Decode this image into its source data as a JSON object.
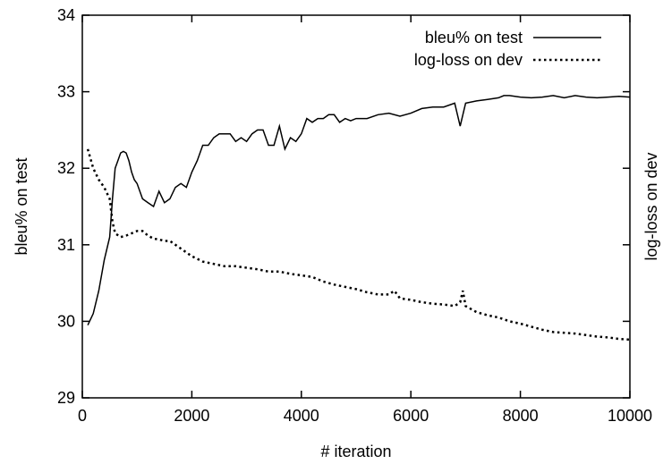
{
  "chart_data": {
    "type": "line",
    "xlabel": "# iteration",
    "ylabel": "bleu% on test",
    "y2label": "log-loss on dev",
    "xlim": [
      0,
      10000
    ],
    "ylim": [
      29,
      34
    ],
    "x_ticks": [
      "0",
      "2000",
      "4000",
      "6000",
      "8000",
      "10000"
    ],
    "y_ticks": [
      "29",
      "30",
      "31",
      "32",
      "33",
      "34"
    ],
    "legend_position": "top-right",
    "grid": false,
    "series": [
      {
        "name": "bleu% on test",
        "style": "solid",
        "color": "#000000",
        "x": [
          100,
          200,
          300,
          400,
          500,
          550,
          600,
          650,
          700,
          750,
          800,
          850,
          900,
          950,
          1000,
          1100,
          1200,
          1300,
          1400,
          1500,
          1600,
          1700,
          1800,
          1900,
          2000,
          2100,
          2200,
          2300,
          2400,
          2500,
          2600,
          2700,
          2800,
          2900,
          3000,
          3100,
          3200,
          3300,
          3400,
          3500,
          3600,
          3700,
          3800,
          3900,
          4000,
          4100,
          4200,
          4300,
          4400,
          4500,
          4600,
          4700,
          4800,
          4900,
          5000,
          5200,
          5400,
          5600,
          5800,
          6000,
          6200,
          6400,
          6600,
          6800,
          6900,
          7000,
          7200,
          7400,
          7600,
          7700,
          7800,
          8000,
          8200,
          8400,
          8600,
          8800,
          9000,
          9200,
          9400,
          9600,
          9800,
          10000
        ],
        "values": [
          29.95,
          30.1,
          30.4,
          30.8,
          31.1,
          31.6,
          32.0,
          32.1,
          32.2,
          32.22,
          32.2,
          32.1,
          31.95,
          31.85,
          31.8,
          31.6,
          31.55,
          31.5,
          31.7,
          31.55,
          31.6,
          31.75,
          31.8,
          31.75,
          31.95,
          32.1,
          32.3,
          32.3,
          32.4,
          32.45,
          32.45,
          32.45,
          32.35,
          32.4,
          32.35,
          32.45,
          32.5,
          32.5,
          32.3,
          32.3,
          32.55,
          32.25,
          32.4,
          32.35,
          32.45,
          32.65,
          32.6,
          32.65,
          32.65,
          32.7,
          32.7,
          32.6,
          32.65,
          32.62,
          32.65,
          32.65,
          32.7,
          32.72,
          32.68,
          32.72,
          32.78,
          32.8,
          32.8,
          32.85,
          32.55,
          32.85,
          32.88,
          32.9,
          32.92,
          32.95,
          32.95,
          32.93,
          32.92,
          32.93,
          32.95,
          32.92,
          32.95,
          32.93,
          32.92,
          32.93,
          32.94,
          32.93
        ]
      },
      {
        "name": "log-loss on dev",
        "style": "dotted",
        "color": "#000000",
        "x": [
          100,
          200,
          300,
          400,
          500,
          550,
          600,
          700,
          800,
          900,
          1000,
          1100,
          1200,
          1300,
          1400,
          1500,
          1600,
          1700,
          1800,
          1900,
          2000,
          2200,
          2400,
          2600,
          2800,
          3000,
          3200,
          3400,
          3600,
          3800,
          4000,
          4200,
          4400,
          4600,
          4800,
          5000,
          5200,
          5400,
          5600,
          5700,
          5800,
          6000,
          6200,
          6400,
          6600,
          6800,
          6900,
          6950,
          7000,
          7200,
          7400,
          7600,
          7800,
          8000,
          8200,
          8400,
          8600,
          8800,
          9000,
          9200,
          9400,
          9600,
          9800,
          10000
        ],
        "values": [
          32.25,
          32.0,
          31.85,
          31.75,
          31.6,
          31.3,
          31.15,
          31.1,
          31.12,
          31.15,
          31.18,
          31.18,
          31.12,
          31.08,
          31.07,
          31.05,
          31.05,
          31.0,
          30.95,
          30.9,
          30.85,
          30.78,
          30.75,
          30.72,
          30.72,
          30.7,
          30.68,
          30.65,
          30.65,
          30.62,
          30.6,
          30.58,
          30.52,
          30.48,
          30.45,
          30.42,
          30.38,
          30.35,
          30.35,
          30.4,
          30.3,
          30.28,
          30.25,
          30.23,
          30.22,
          30.2,
          30.25,
          30.4,
          30.2,
          30.12,
          30.08,
          30.05,
          30.0,
          29.97,
          29.93,
          29.89,
          29.86,
          29.85,
          29.84,
          29.82,
          29.8,
          29.79,
          29.77,
          29.76
        ]
      }
    ]
  }
}
